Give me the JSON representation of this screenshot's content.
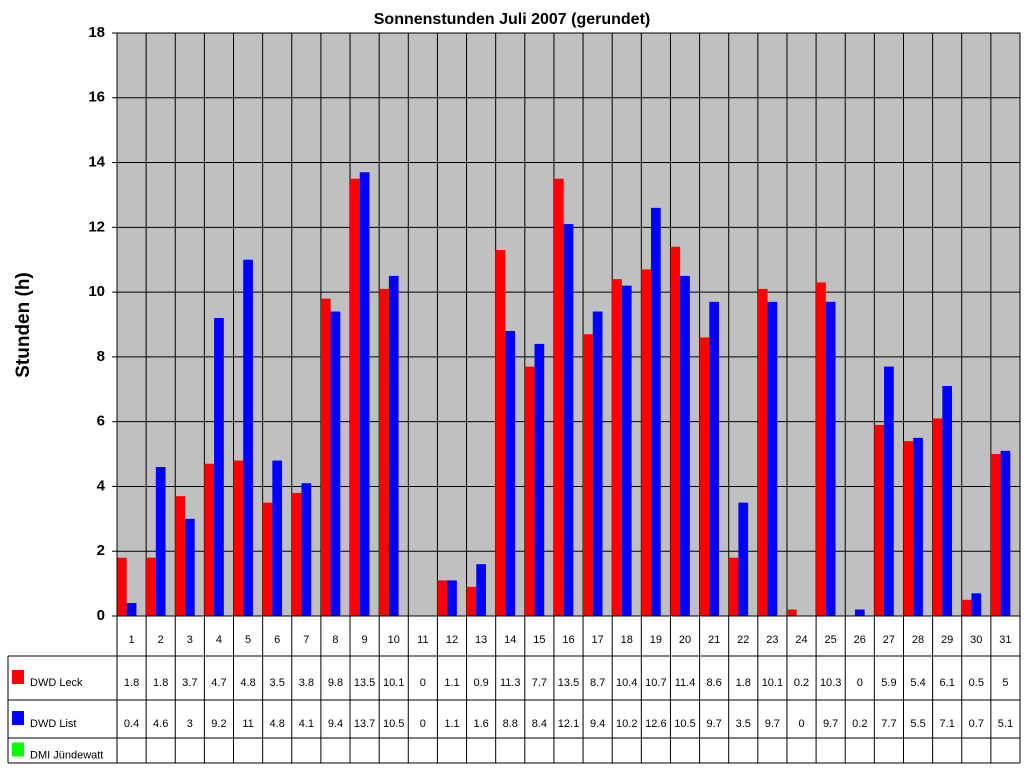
{
  "chart_data": {
    "type": "bar",
    "title": "Sonnenstunden Juli 2007 (gerundet)",
    "y_label": "Stunden (h)",
    "categories": [
      "1",
      "2",
      "3",
      "4",
      "5",
      "6",
      "7",
      "8",
      "9",
      "10",
      "11",
      "12",
      "13",
      "14",
      "15",
      "16",
      "17",
      "18",
      "19",
      "20",
      "21",
      "22",
      "23",
      "24",
      "25",
      "26",
      "27",
      "28",
      "29",
      "30",
      "31"
    ],
    "series": [
      {
        "name": "DWD Leck",
        "color": "#ff0000",
        "values": [
          1.8,
          1.8,
          3.7,
          4.7,
          4.8,
          3.5,
          3.8,
          9.8,
          13.5,
          10.1,
          0,
          1.1,
          0.9,
          11.3,
          7.7,
          13.5,
          8.7,
          10.4,
          10.7,
          11.4,
          8.6,
          1.8,
          10.1,
          0.2,
          10.3,
          0,
          5.9,
          5.4,
          6.1,
          0.5,
          5
        ]
      },
      {
        "name": "DWD List",
        "color": "#0000ff",
        "values": [
          0.4,
          4.6,
          3,
          9.2,
          11,
          4.8,
          4.1,
          9.4,
          13.7,
          10.5,
          0,
          1.1,
          1.6,
          8.8,
          8.4,
          12.1,
          9.4,
          10.2,
          12.6,
          10.5,
          9.7,
          3.5,
          9.7,
          0,
          9.7,
          0.2,
          7.7,
          5.5,
          7.1,
          0.7,
          5.1
        ]
      },
      {
        "name": "DMI Jündewatt",
        "color": "#00ff00",
        "values": [
          null,
          null,
          null,
          null,
          null,
          null,
          null,
          null,
          null,
          null,
          null,
          null,
          null,
          null,
          null,
          null,
          null,
          null,
          null,
          null,
          null,
          null,
          null,
          null,
          null,
          null,
          null,
          null,
          null,
          null,
          null
        ]
      }
    ],
    "ylim": [
      0,
      18
    ],
    "yticks": [
      0,
      2,
      4,
      6,
      8,
      10,
      12,
      14,
      16,
      18
    ],
    "grid": true,
    "plot_background": "#c0c0c0"
  }
}
